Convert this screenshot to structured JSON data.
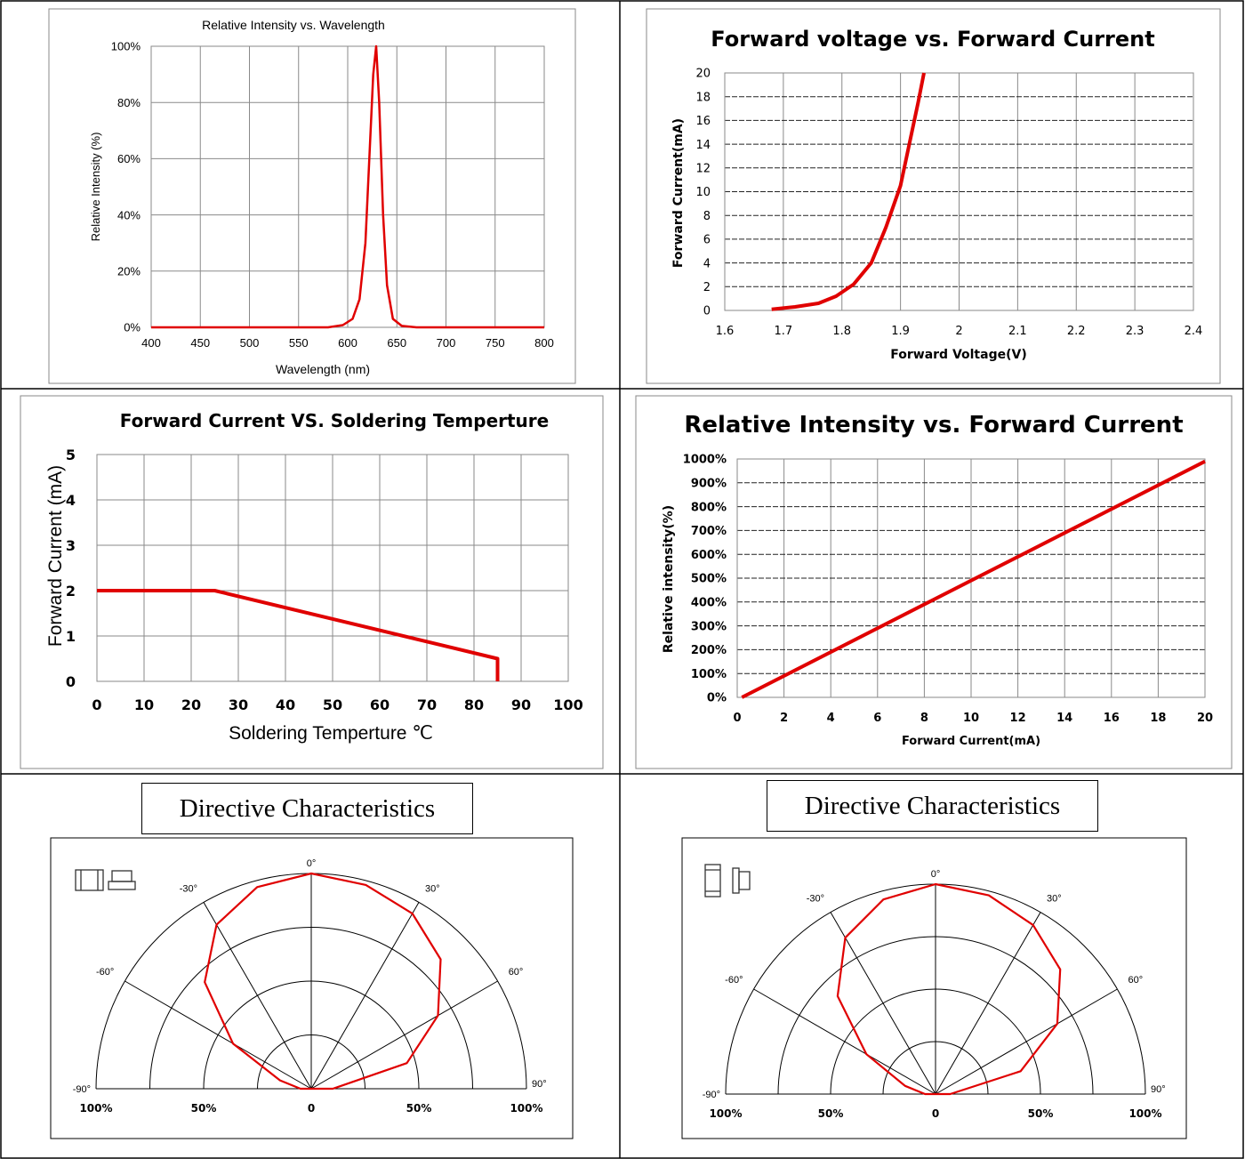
{
  "chart_data": [
    {
      "type": "line",
      "title": "Relative Intensity vs. Wavelength",
      "xlabel": "Wavelength (nm)",
      "ylabel": "Relative Intensity (%)",
      "xlim": [
        400,
        800
      ],
      "ylim": [
        0,
        100
      ],
      "xticks": [
        "400",
        "450",
        "500",
        "550",
        "600",
        "650",
        "700",
        "750",
        "800"
      ],
      "yticks": [
        "0%",
        "20%",
        "40%",
        "60%",
        "80%",
        "100%"
      ],
      "grid": "solid",
      "series": [
        {
          "color": "#e00000",
          "x": [
            400,
            580,
            595,
            605,
            612,
            618,
            622,
            626,
            629,
            632,
            636,
            640,
            646,
            655,
            670,
            800
          ],
          "y": [
            0,
            0,
            0.8,
            3,
            10,
            30,
            60,
            90,
            100,
            80,
            40,
            15,
            3,
            0.5,
            0,
            0
          ]
        }
      ]
    },
    {
      "type": "line",
      "title": "Forward voltage vs. Forward Current",
      "xlabel": "Forward Voltage(V)",
      "ylabel": "Forward Current(mA)",
      "xlim": [
        1.6,
        2.4
      ],
      "ylim": [
        0,
        20
      ],
      "xticks": [
        "1.6",
        "1.7",
        "1.8",
        "1.9",
        "2",
        "2.1",
        "2.2",
        "2.3",
        "2.4"
      ],
      "yticks": [
        "0",
        "2",
        "4",
        "6",
        "8",
        "10",
        "12",
        "14",
        "16",
        "18",
        "20"
      ],
      "grid": "dashed",
      "series": [
        {
          "color": "#e00000",
          "x": [
            1.68,
            1.72,
            1.76,
            1.79,
            1.82,
            1.85,
            1.875,
            1.9,
            1.915,
            1.93,
            1.94
          ],
          "y": [
            0.1,
            0.3,
            0.6,
            1.2,
            2.2,
            4,
            7,
            10.5,
            14,
            17.5,
            20
          ]
        }
      ]
    },
    {
      "type": "line",
      "title": "Forward Current  VS. Soldering Temperture",
      "xlabel": "Soldering Temperture ℃",
      "ylabel": "Forward Current (mA)",
      "xlim": [
        0,
        100
      ],
      "ylim": [
        0,
        5
      ],
      "xticks": [
        "0",
        "10",
        "20",
        "30",
        "40",
        "50",
        "60",
        "70",
        "80",
        "90",
        "100"
      ],
      "yticks": [
        "0",
        "1",
        "2",
        "3",
        "4",
        "5"
      ],
      "grid": "solid",
      "series": [
        {
          "color": "#e00000",
          "x": [
            0,
            25,
            85,
            85
          ],
          "y": [
            2,
            2,
            0.5,
            0
          ]
        }
      ]
    },
    {
      "type": "line",
      "title": "Relative Intensity vs. Forward Current",
      "xlabel": "Forward Current(mA)",
      "ylabel": "Relative intensity(%)",
      "xlim": [
        0,
        20
      ],
      "ylim": [
        0,
        1000
      ],
      "xticks": [
        "0",
        "2",
        "4",
        "6",
        "8",
        "10",
        "12",
        "14",
        "16",
        "18",
        "20"
      ],
      "yticks": [
        "0%",
        "100%",
        "200%",
        "300%",
        "400%",
        "500%",
        "600%",
        "700%",
        "800%",
        "900%",
        "1000%"
      ],
      "grid": "dashed",
      "series": [
        {
          "color": "#e00000",
          "x": [
            0.2,
            20
          ],
          "y": [
            0,
            990
          ]
        }
      ]
    },
    {
      "type": "polar",
      "title": "Directive Characteristics",
      "angle_labels": {
        "a0": "0°",
        "a30": "30°",
        "a-30": "-30°",
        "a60": "60°",
        "a-60": "-60°",
        "a90": "90°",
        "a-90": "-90°"
      },
      "radial_labels": [
        "100%",
        "50%",
        "0",
        "50%",
        "100%"
      ],
      "series": [
        {
          "color": "#e00000",
          "angles": [
            -90,
            -75,
            -60,
            -45,
            -30,
            -15,
            0,
            15,
            30,
            45,
            60,
            75,
            90
          ],
          "values": [
            0.05,
            0.15,
            0.42,
            0.7,
            0.88,
            0.97,
            1.0,
            0.98,
            0.94,
            0.85,
            0.68,
            0.46,
            0.1
          ]
        }
      ]
    },
    {
      "type": "polar",
      "title": "Directive Characteristics",
      "angle_labels": {
        "a0": "0°",
        "a30": "30°",
        "a-30": "-30°",
        "a60": "60°",
        "a-60": "-60°",
        "a90": "90°",
        "a-90": "-90°"
      },
      "radial_labels": [
        "100%",
        "50%",
        "0",
        "50%",
        "100%"
      ],
      "series": [
        {
          "color": "#e00000",
          "angles": [
            -90,
            -75,
            -60,
            -45,
            -30,
            -15,
            0,
            15,
            30,
            45,
            60,
            75,
            90
          ],
          "values": [
            0.05,
            0.15,
            0.38,
            0.66,
            0.86,
            0.96,
            1.0,
            0.98,
            0.93,
            0.84,
            0.67,
            0.42,
            0.07
          ]
        }
      ]
    }
  ]
}
